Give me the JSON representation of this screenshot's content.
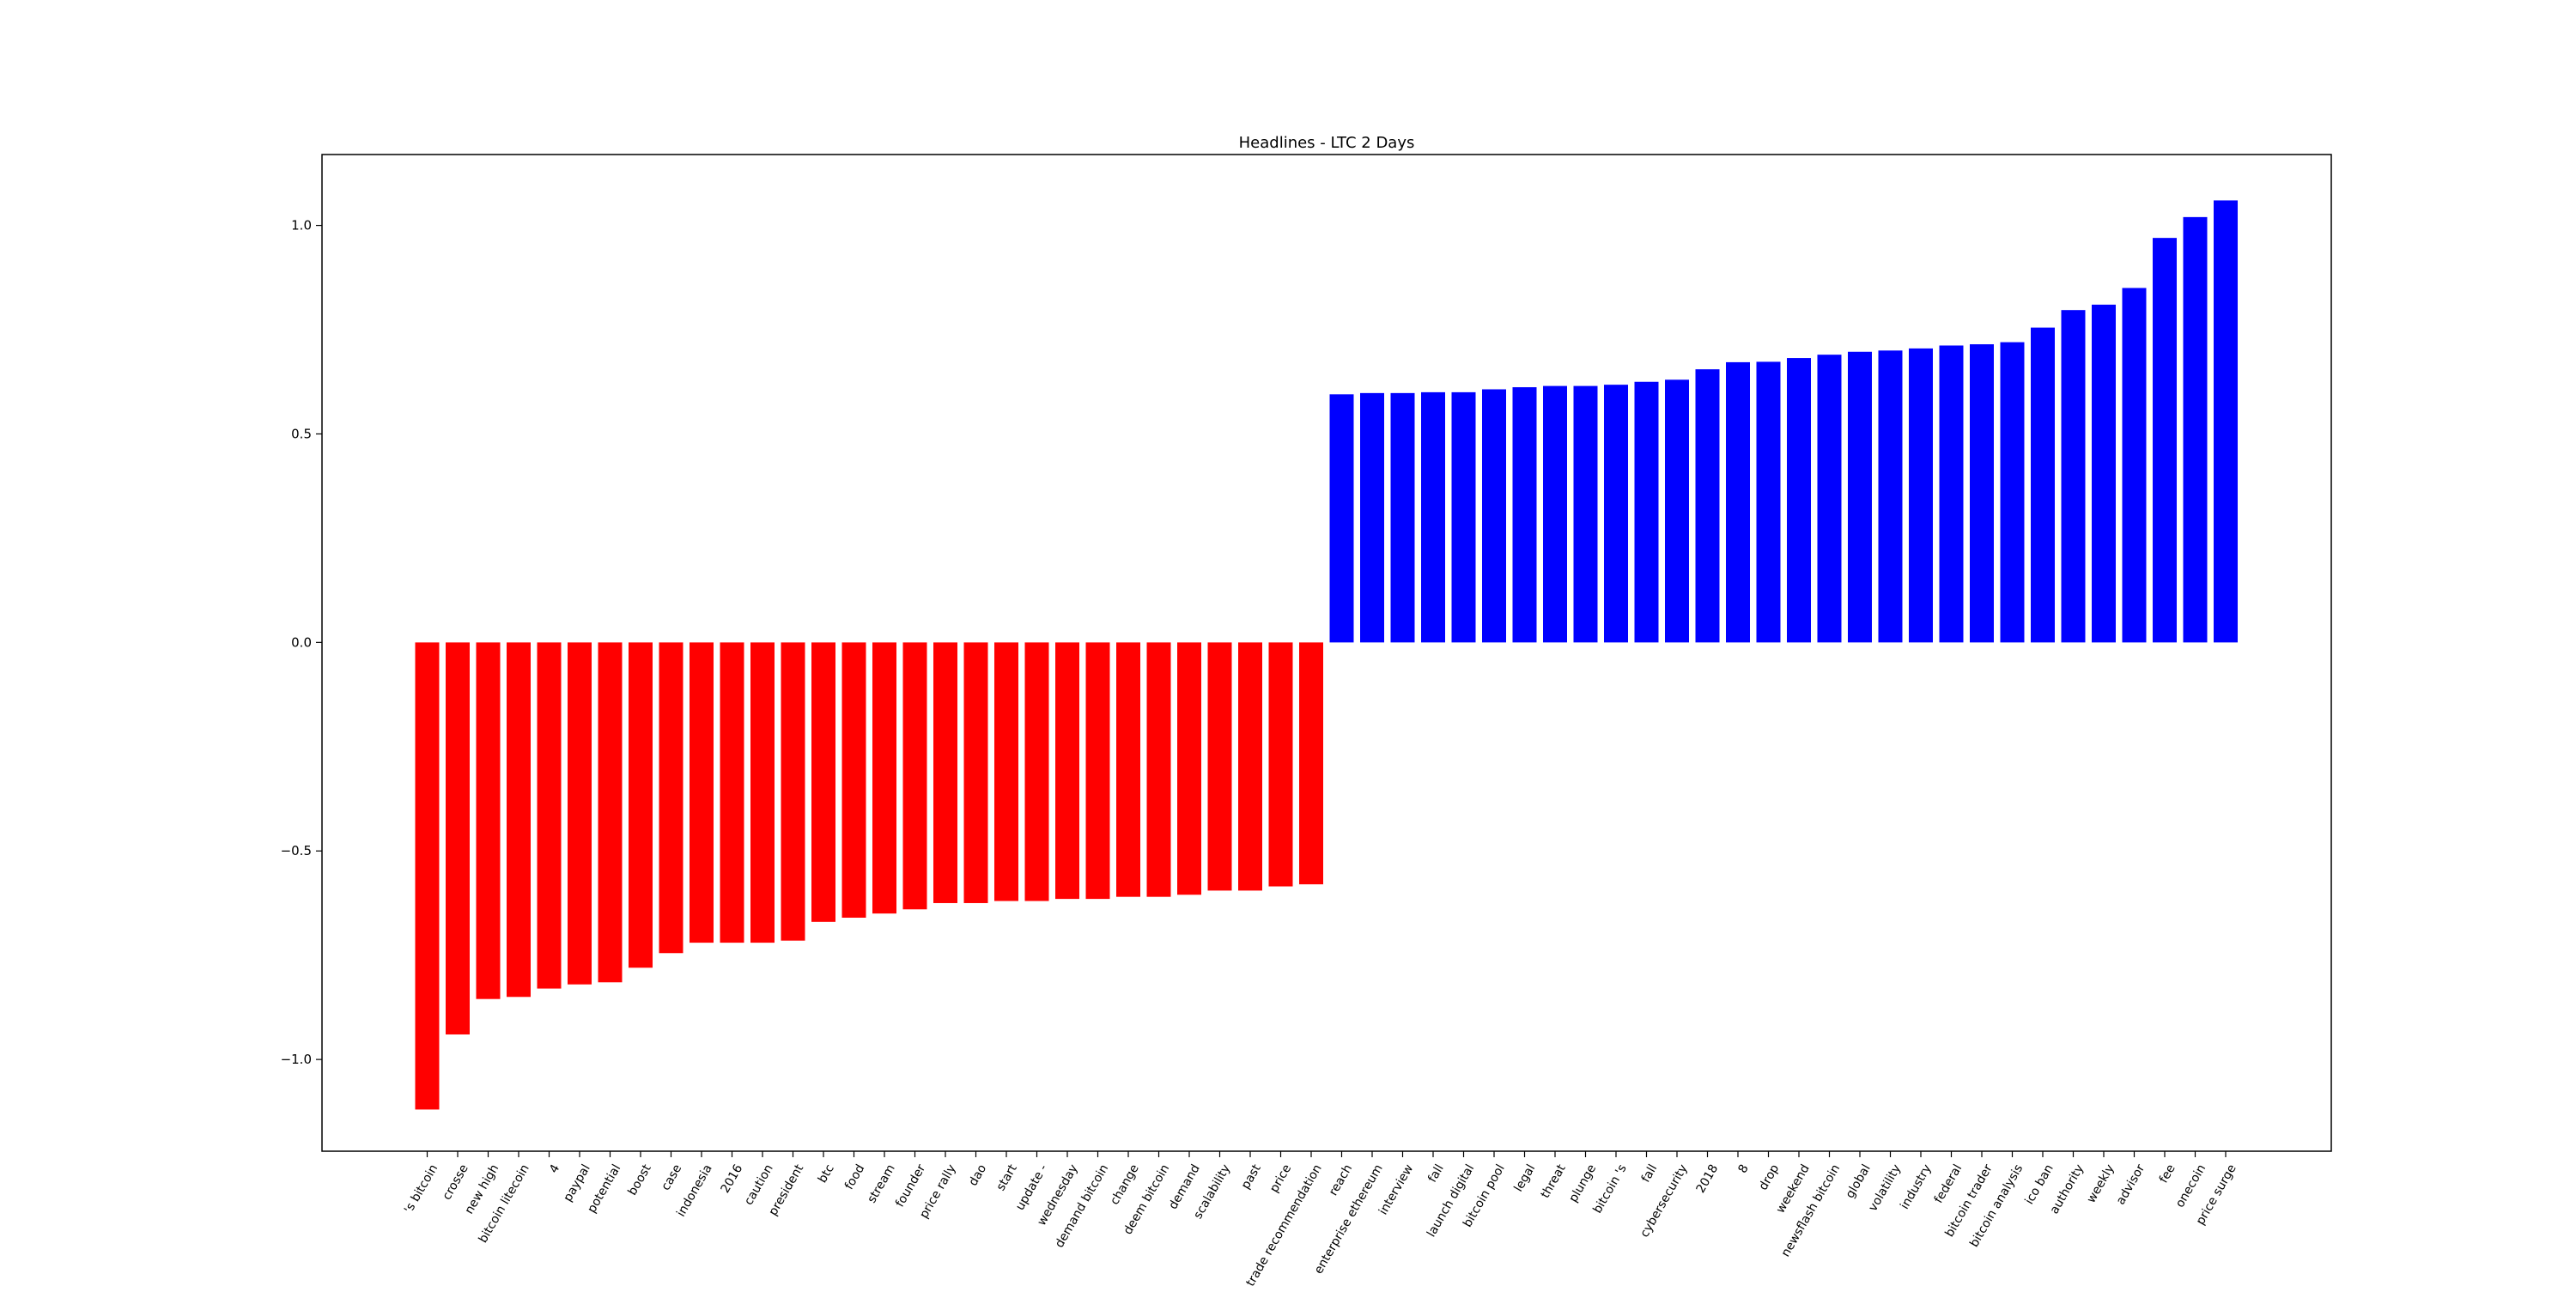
{
  "chart_data": {
    "type": "bar",
    "title": "Headlines - LTC 2 Days",
    "xlabel": "",
    "ylabel": "",
    "ylim": [
      -1.22,
      1.17
    ],
    "yticks": [
      1.0,
      0.5,
      0.0,
      -0.5,
      -1.0
    ],
    "ytick_labels": [
      "1.0",
      "0.5",
      "0.0",
      "−0.5",
      "−1.0"
    ],
    "grid": false,
    "colors": {
      "negative": "#ff0000",
      "positive": "#0000ff"
    },
    "categories": [
      "'s bitcoin",
      "crosse",
      "new high",
      "bitcoin litecoin",
      "4",
      "paypal",
      "potential",
      "boost",
      "case",
      "indonesia",
      "2016",
      "caution",
      "president",
      "btc",
      "food",
      "stream",
      "founder",
      "price rally",
      "dao",
      "start",
      "update -",
      "wednesday",
      "demand bitcoin",
      "change",
      "deem bitcoin",
      "demand",
      "scalability",
      "past",
      "price",
      "trade recommendation",
      "reach",
      "enterprise ethereum",
      "interview",
      "fall",
      "launch digital",
      "bitcoin pool",
      "legal",
      "threat",
      "plunge",
      "bitcoin 's",
      "fall",
      "cybersecurity",
      "2018",
      "8",
      "drop",
      "weekend",
      "newsflash bitcoin",
      "global",
      "volatility",
      "industry",
      "federal",
      "bitcoin trader",
      "bitcoin analysis",
      "ico ban",
      "authority",
      "weekly",
      "advisor",
      "fee",
      "onecoin",
      "price surge"
    ],
    "values": [
      -1.12,
      -0.94,
      -0.855,
      -0.85,
      -0.83,
      -0.82,
      -0.815,
      -0.78,
      -0.745,
      -0.72,
      -0.72,
      -0.72,
      -0.715,
      -0.67,
      -0.66,
      -0.65,
      -0.64,
      -0.625,
      -0.625,
      -0.62,
      -0.62,
      -0.615,
      -0.615,
      -0.61,
      -0.61,
      -0.605,
      -0.595,
      -0.595,
      -0.585,
      -0.58,
      0.595,
      0.598,
      0.598,
      0.6,
      0.6,
      0.607,
      0.612,
      0.615,
      0.615,
      0.618,
      0.625,
      0.63,
      0.655,
      0.672,
      0.673,
      0.682,
      0.69,
      0.697,
      0.7,
      0.705,
      0.712,
      0.715,
      0.72,
      0.755,
      0.797,
      0.81,
      0.85,
      0.97,
      1.02,
      1.06
    ]
  }
}
